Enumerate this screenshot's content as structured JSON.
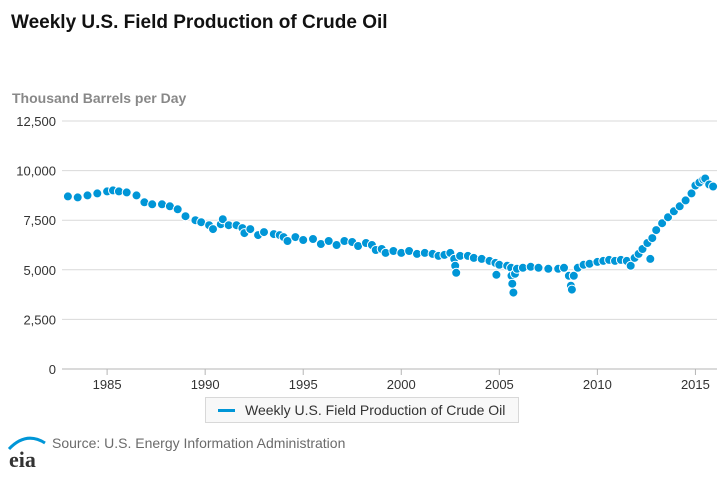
{
  "title": "Weekly U.S. Field Production of Crude Oil",
  "source": "Source: U.S. Energy Information Administration",
  "logo_text": "eia",
  "colors": {
    "series": "#0096d7",
    "title": "#111111",
    "axis_text": "#333333",
    "unit_text": "#888888",
    "grid": "#d9d9d9"
  },
  "chart_data": {
    "type": "scatter",
    "title": "Weekly U.S. Field Production of Crude Oil",
    "ylabel": "Thousand Barrels per Day",
    "xlabel": "",
    "xlim": [
      1982.7,
      2016.1
    ],
    "ylim": [
      0,
      12500
    ],
    "yticks": [
      0,
      2500,
      5000,
      7500,
      10000,
      12500
    ],
    "ytick_labels": [
      "0",
      "2,500",
      "5,000",
      "7,500",
      "10,000",
      "12,500"
    ],
    "xticks": [
      1985,
      1990,
      1995,
      2000,
      2005,
      2010,
      2015
    ],
    "xtick_labels": [
      "1985",
      "1990",
      "1995",
      "2000",
      "2005",
      "2010",
      "2015"
    ],
    "grid": true,
    "legend": "bottom",
    "series": [
      {
        "name": "Weekly U.S. Field Production of Crude Oil",
        "color": "#0096d7",
        "points": [
          [
            1983.0,
            8700
          ],
          [
            1983.5,
            8650
          ],
          [
            1984.0,
            8750
          ],
          [
            1984.5,
            8850
          ],
          [
            1985.0,
            8950
          ],
          [
            1985.3,
            9000
          ],
          [
            1985.6,
            8950
          ],
          [
            1986.0,
            8900
          ],
          [
            1986.5,
            8750
          ],
          [
            1986.9,
            8400
          ],
          [
            1987.3,
            8300
          ],
          [
            1987.8,
            8300
          ],
          [
            1988.2,
            8200
          ],
          [
            1988.6,
            8050
          ],
          [
            1989.0,
            7700
          ],
          [
            1989.5,
            7500
          ],
          [
            1989.8,
            7400
          ],
          [
            1990.2,
            7250
          ],
          [
            1990.4,
            7050
          ],
          [
            1990.8,
            7300
          ],
          [
            1990.9,
            7550
          ],
          [
            1991.2,
            7250
          ],
          [
            1991.6,
            7250
          ],
          [
            1991.9,
            7100
          ],
          [
            1992.0,
            6850
          ],
          [
            1992.3,
            7050
          ],
          [
            1992.7,
            6750
          ],
          [
            1993.0,
            6900
          ],
          [
            1993.5,
            6800
          ],
          [
            1993.8,
            6750
          ],
          [
            1994.0,
            6650
          ],
          [
            1994.2,
            6450
          ],
          [
            1994.6,
            6650
          ],
          [
            1995.0,
            6500
          ],
          [
            1995.5,
            6550
          ],
          [
            1995.9,
            6300
          ],
          [
            1996.3,
            6450
          ],
          [
            1996.7,
            6250
          ],
          [
            1997.1,
            6450
          ],
          [
            1997.5,
            6400
          ],
          [
            1997.8,
            6200
          ],
          [
            1998.2,
            6350
          ],
          [
            1998.5,
            6250
          ],
          [
            1998.7,
            6000
          ],
          [
            1999.0,
            6050
          ],
          [
            1999.2,
            5850
          ],
          [
            1999.6,
            5950
          ],
          [
            2000.0,
            5850
          ],
          [
            2000.4,
            5950
          ],
          [
            2000.8,
            5800
          ],
          [
            2001.2,
            5850
          ],
          [
            2001.6,
            5800
          ],
          [
            2001.9,
            5700
          ],
          [
            2002.2,
            5750
          ],
          [
            2002.5,
            5850
          ],
          [
            2002.7,
            5550
          ],
          [
            2002.75,
            5200
          ],
          [
            2002.8,
            4850
          ],
          [
            2003.0,
            5700
          ],
          [
            2003.4,
            5700
          ],
          [
            2003.7,
            5600
          ],
          [
            2004.1,
            5550
          ],
          [
            2004.5,
            5450
          ],
          [
            2004.8,
            5350
          ],
          [
            2004.85,
            4750
          ],
          [
            2005.0,
            5250
          ],
          [
            2005.4,
            5200
          ],
          [
            2005.6,
            5100
          ],
          [
            2005.62,
            4700
          ],
          [
            2005.66,
            4300
          ],
          [
            2005.72,
            3850
          ],
          [
            2005.8,
            4800
          ],
          [
            2005.9,
            5050
          ],
          [
            2006.2,
            5100
          ],
          [
            2006.6,
            5150
          ],
          [
            2007.0,
            5100
          ],
          [
            2007.5,
            5050
          ],
          [
            2008.0,
            5050
          ],
          [
            2008.3,
            5100
          ],
          [
            2008.55,
            4700
          ],
          [
            2008.65,
            4200
          ],
          [
            2008.7,
            4000
          ],
          [
            2008.8,
            4700
          ],
          [
            2009.0,
            5100
          ],
          [
            2009.3,
            5250
          ],
          [
            2009.6,
            5300
          ],
          [
            2010.0,
            5400
          ],
          [
            2010.3,
            5450
          ],
          [
            2010.6,
            5500
          ],
          [
            2010.9,
            5450
          ],
          [
            2011.2,
            5500
          ],
          [
            2011.5,
            5450
          ],
          [
            2011.7,
            5200
          ],
          [
            2011.9,
            5600
          ],
          [
            2012.1,
            5800
          ],
          [
            2012.3,
            6050
          ],
          [
            2012.55,
            6350
          ],
          [
            2012.7,
            5550
          ],
          [
            2012.8,
            6600
          ],
          [
            2013.0,
            7000
          ],
          [
            2013.3,
            7350
          ],
          [
            2013.6,
            7650
          ],
          [
            2013.9,
            7950
          ],
          [
            2014.2,
            8200
          ],
          [
            2014.5,
            8500
          ],
          [
            2014.8,
            8850
          ],
          [
            2015.0,
            9250
          ],
          [
            2015.2,
            9400
          ],
          [
            2015.4,
            9550
          ],
          [
            2015.5,
            9600
          ],
          [
            2015.7,
            9300
          ],
          [
            2015.9,
            9200
          ]
        ]
      }
    ]
  }
}
